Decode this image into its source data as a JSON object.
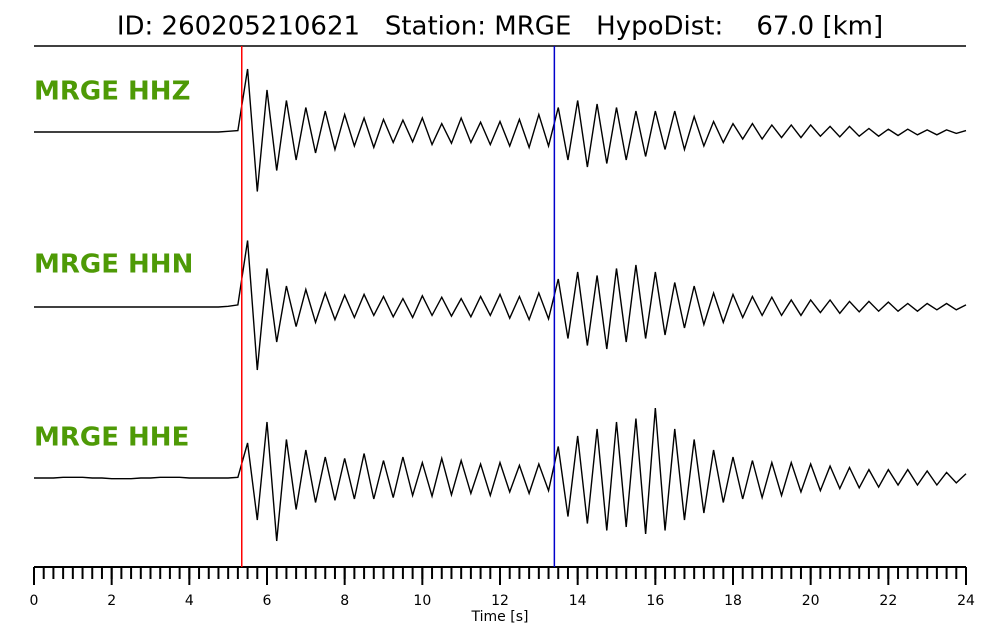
{
  "chart_data": {
    "type": "seismogram",
    "title": "ID: 260205210621   Station: MRGE   HypoDist:    67.0 [km]",
    "xlabel": "Time [s]",
    "xlim": [
      0,
      24
    ],
    "xticks": [
      0,
      2,
      4,
      6,
      8,
      10,
      12,
      14,
      16,
      18,
      20,
      22,
      24
    ],
    "ylim": [
      -1,
      1
    ],
    "label_color": "#4e9a06",
    "picks": [
      {
        "time": 5.35,
        "color": "#ff0000"
      },
      {
        "time": 13.4,
        "color": "#0000cc"
      }
    ],
    "x": [
      0,
      0.25,
      0.5,
      0.75,
      1,
      1.25,
      1.5,
      1.75,
      2,
      2.25,
      2.5,
      2.75,
      3,
      3.25,
      3.5,
      3.75,
      4,
      4.25,
      4.5,
      4.75,
      5,
      5.25,
      5.5,
      5.75,
      6,
      6.25,
      6.5,
      6.75,
      7,
      7.25,
      7.5,
      7.75,
      8,
      8.25,
      8.5,
      8.75,
      9,
      9.25,
      9.5,
      9.75,
      10,
      10.25,
      10.5,
      10.75,
      11,
      11.25,
      11.5,
      11.75,
      12,
      12.25,
      12.5,
      12.75,
      13,
      13.25,
      13.5,
      13.75,
      14,
      14.25,
      14.5,
      14.75,
      15,
      15.25,
      15.5,
      15.75,
      16,
      16.25,
      16.5,
      16.75,
      17,
      17.25,
      17.5,
      17.75,
      18,
      18.25,
      18.5,
      18.75,
      19,
      19.25,
      19.5,
      19.75,
      20,
      20.25,
      20.5,
      20.75,
      21,
      21.25,
      21.5,
      21.75,
      22,
      22.25,
      22.5,
      22.75,
      23,
      23.25,
      23.5,
      23.75,
      24
    ],
    "series": [
      {
        "name": "MRGE HHZ",
        "color": "#000000",
        "values": [
          0,
          0,
          0,
          0,
          0,
          0,
          0,
          0,
          0,
          0,
          0,
          0,
          0,
          0,
          0,
          0,
          0,
          0,
          0,
          0,
          0.01,
          0.02,
          0.9,
          -0.85,
          0.6,
          -0.55,
          0.45,
          -0.4,
          0.35,
          -0.3,
          0.3,
          -0.25,
          0.25,
          -0.2,
          0.2,
          -0.22,
          0.18,
          -0.15,
          0.17,
          -0.14,
          0.2,
          -0.18,
          0.12,
          -0.16,
          0.2,
          -0.15,
          0.14,
          -0.18,
          0.15,
          -0.2,
          0.18,
          -0.22,
          0.25,
          -0.2,
          0.35,
          -0.4,
          0.45,
          -0.5,
          0.4,
          -0.45,
          0.35,
          -0.4,
          0.3,
          -0.35,
          0.3,
          -0.25,
          0.3,
          -0.25,
          0.22,
          -0.2,
          0.15,
          -0.15,
          0.12,
          -0.1,
          0.12,
          -0.1,
          0.1,
          -0.08,
          0.1,
          -0.08,
          0.1,
          -0.06,
          0.08,
          -0.07,
          0.08,
          -0.06,
          0.05,
          -0.06,
          0.04,
          -0.05,
          0.04,
          -0.04,
          0.03,
          -0.04,
          0.03,
          -0.02,
          0.02
        ]
      },
      {
        "name": "MRGE HHN",
        "color": "#000000",
        "values": [
          0,
          0,
          0,
          0,
          0,
          0,
          0,
          0,
          0,
          0,
          0,
          0,
          0,
          0,
          0,
          0,
          0,
          0,
          0,
          0,
          0.01,
          0.03,
          0.95,
          -0.9,
          0.55,
          -0.5,
          0.3,
          -0.28,
          0.25,
          -0.22,
          0.2,
          -0.18,
          0.17,
          -0.15,
          0.18,
          -0.12,
          0.15,
          -0.14,
          0.12,
          -0.15,
          0.16,
          -0.12,
          0.14,
          -0.13,
          0.12,
          -0.14,
          0.15,
          -0.12,
          0.18,
          -0.16,
          0.15,
          -0.18,
          0.2,
          -0.17,
          0.4,
          -0.45,
          0.5,
          -0.55,
          0.45,
          -0.6,
          0.55,
          -0.5,
          0.6,
          -0.45,
          0.5,
          -0.4,
          0.35,
          -0.3,
          0.3,
          -0.25,
          0.2,
          -0.22,
          0.18,
          -0.15,
          0.15,
          -0.12,
          0.14,
          -0.12,
          0.1,
          -0.12,
          0.1,
          -0.08,
          0.1,
          -0.09,
          0.08,
          -0.07,
          0.08,
          -0.06,
          0.07,
          -0.06,
          0.05,
          -0.06,
          0.05,
          -0.04,
          0.05,
          -0.04,
          0.03
        ]
      },
      {
        "name": "MRGE HHE",
        "color": "#000000",
        "values": [
          0,
          0,
          0,
          0.01,
          0.01,
          0.01,
          0,
          0,
          -0.01,
          -0.01,
          -0.01,
          0,
          0,
          0.01,
          0.01,
          0.01,
          0,
          0,
          0,
          0,
          0,
          0.01,
          0.5,
          -0.6,
          0.8,
          -0.9,
          0.55,
          -0.45,
          0.4,
          -0.35,
          0.3,
          -0.32,
          0.28,
          -0.3,
          0.35,
          -0.3,
          0.25,
          -0.28,
          0.3,
          -0.25,
          0.22,
          -0.26,
          0.28,
          -0.24,
          0.25,
          -0.22,
          0.2,
          -0.25,
          0.22,
          -0.2,
          0.18,
          -0.22,
          0.2,
          -0.18,
          0.45,
          -0.55,
          0.6,
          -0.65,
          0.7,
          -0.75,
          0.8,
          -0.7,
          0.85,
          -0.8,
          1.0,
          -0.75,
          0.7,
          -0.6,
          0.55,
          -0.5,
          0.4,
          -0.35,
          0.3,
          -0.3,
          0.25,
          -0.28,
          0.22,
          -0.25,
          0.22,
          -0.2,
          0.2,
          -0.18,
          0.17,
          -0.15,
          0.15,
          -0.14,
          0.12,
          -0.13,
          0.12,
          -0.1,
          0.12,
          -0.1,
          0.1,
          -0.1,
          0.08,
          -0.07,
          0.06
        ]
      }
    ]
  }
}
